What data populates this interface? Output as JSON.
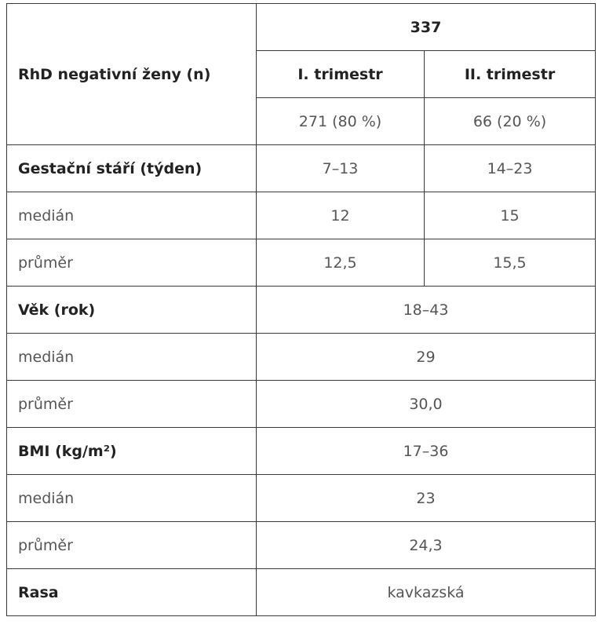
{
  "table": {
    "header": {
      "label": "RhD negativní ženy (n)",
      "total": "337",
      "columns": [
        "I. trimestr",
        "II. trimestr"
      ],
      "counts": [
        "271 (80 %)",
        "66 (20 %)"
      ]
    },
    "rows": [
      [
        "Gestační stáří (týden)",
        "7–13",
        "14–23"
      ],
      [
        "medián",
        "12",
        "15"
      ],
      [
        "průměr",
        "12,5",
        "15,5"
      ],
      [
        "Věk (rok)",
        "18–43"
      ],
      [
        "medián",
        "29"
      ],
      [
        "průměr",
        "30,0"
      ],
      [
        "BMI (kg/m²)",
        "17–36"
      ],
      [
        "medián",
        "23"
      ],
      [
        "průměr",
        "24,3"
      ],
      [
        "Rasa",
        "kavkazská"
      ]
    ]
  }
}
